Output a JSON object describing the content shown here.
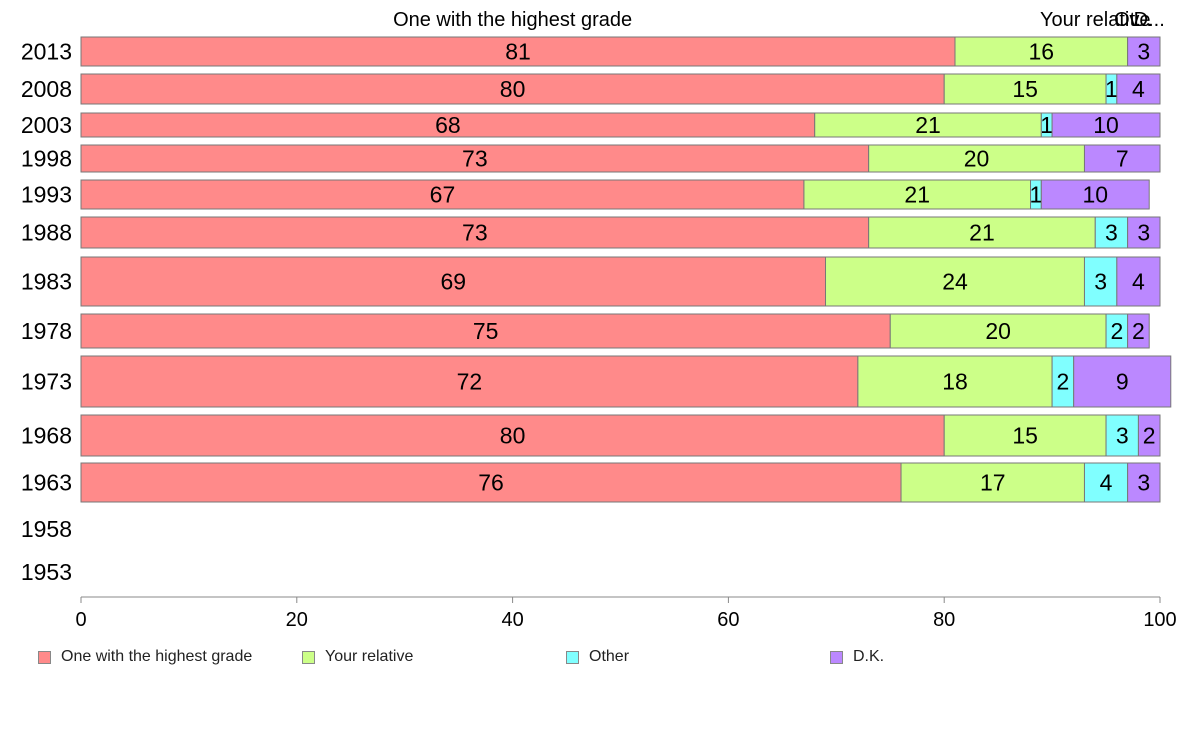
{
  "chart_data": {
    "type": "bar",
    "orientation": "horizontal",
    "stacked": true,
    "categories": [
      "2013",
      "2008",
      "2003",
      "1998",
      "1993",
      "1988",
      "1983",
      "1978",
      "1973",
      "1968",
      "1963",
      "1958",
      "1953"
    ],
    "series": [
      {
        "name": "One with the highest grade",
        "color": "#ff8a8a",
        "values": [
          81,
          80,
          68,
          73,
          67,
          73,
          69,
          75,
          72,
          80,
          76,
          null,
          null
        ]
      },
      {
        "name": "Your relative",
        "color": "#ccff88",
        "values": [
          16,
          15,
          21,
          20,
          21,
          21,
          24,
          20,
          18,
          15,
          17,
          null,
          null
        ]
      },
      {
        "name": "Other",
        "color": "#80ffff",
        "values": [
          0,
          1,
          1,
          0,
          1,
          3,
          3,
          2,
          2,
          3,
          4,
          null,
          null
        ]
      },
      {
        "name": "D.K.",
        "color": "#bb88ff",
        "values": [
          3,
          4,
          10,
          7,
          10,
          3,
          4,
          2,
          9,
          2,
          3,
          null,
          null
        ]
      }
    ],
    "data_labels": [
      [
        "81",
        "16",
        "",
        "3"
      ],
      [
        "80",
        "15",
        "1",
        "4"
      ],
      [
        "68",
        "21",
        "1",
        "10"
      ],
      [
        "73",
        "20",
        "",
        "7"
      ],
      [
        "67",
        "21",
        "1",
        "10"
      ],
      [
        "73",
        "21",
        "3",
        "3"
      ],
      [
        "69",
        "24",
        "3",
        "4"
      ],
      [
        "75",
        "20",
        "2",
        "2"
      ],
      [
        "72",
        "18",
        "2",
        "9"
      ],
      [
        "80",
        "15",
        "3",
        "2"
      ],
      [
        "76",
        "17",
        "4",
        "3"
      ],
      [
        "",
        "",
        "",
        ""
      ],
      [
        "",
        "",
        "",
        ""
      ]
    ],
    "top_labels": [
      {
        "text": "One with the highest grade",
        "at": 40
      },
      {
        "text": "Your relative",
        "at": 94
      },
      {
        "text": "Ot...",
        "at": 97.5
      },
      {
        "text": "D...",
        "at": 99
      }
    ],
    "xlim": [
      0,
      100
    ],
    "xticks": [
      0,
      20,
      40,
      60,
      80,
      100
    ],
    "legend_position": "bottom",
    "grid": false
  }
}
